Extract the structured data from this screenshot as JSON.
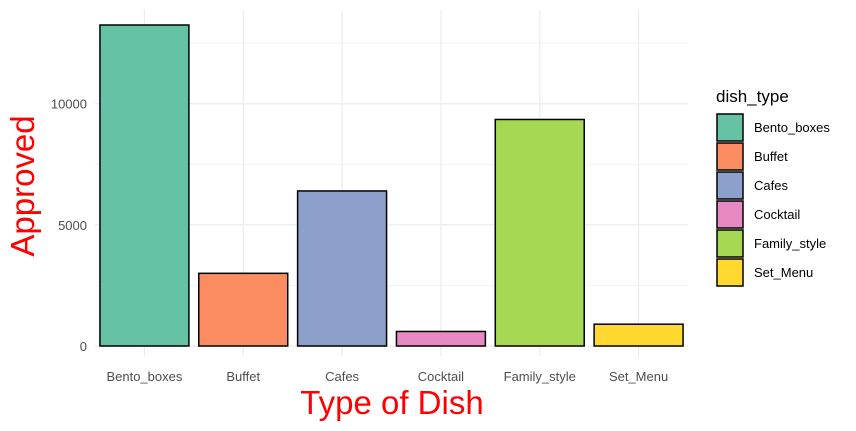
{
  "chart_data": {
    "type": "bar",
    "categories": [
      "Bento_boxes",
      "Buffet",
      "Cafes",
      "Cocktail",
      "Family_style",
      "Set_Menu"
    ],
    "values": [
      13250,
      3000,
      6400,
      600,
      9350,
      900
    ],
    "colors": [
      "#66c2a5",
      "#fc8d62",
      "#8da0cb",
      "#e78ac3",
      "#a6d854",
      "#ffd92f"
    ],
    "xlabel": "Type of Dish",
    "ylabel": "Approved",
    "ylim": [
      0,
      13250
    ],
    "yticks": [
      0,
      5000,
      10000
    ],
    "yticks_labels": [
      "0",
      "5000",
      "10000"
    ],
    "grid": true,
    "legend": {
      "title": "dish_type",
      "placement": "right",
      "entries": [
        "Bento_boxes",
        "Buffet",
        "Cafes",
        "Cocktail",
        "Family_style",
        "Set_Menu"
      ]
    },
    "axis_title_color": "#ff0000"
  }
}
